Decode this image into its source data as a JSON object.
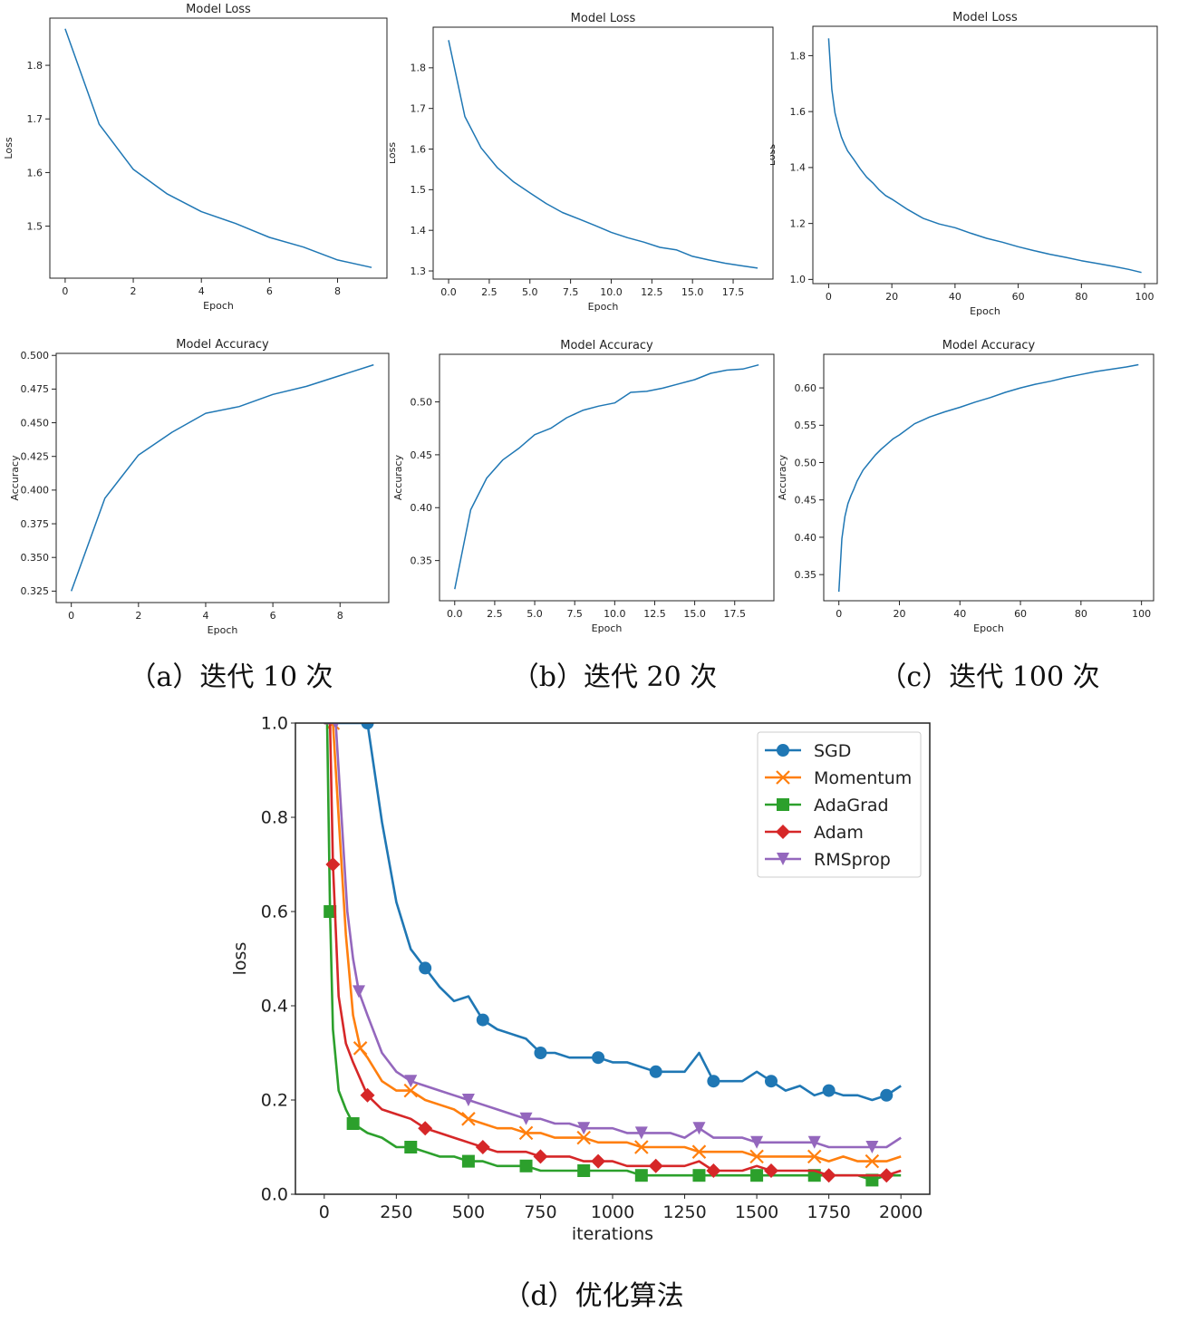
{
  "captions": {
    "a": "（a）迭代 10 次",
    "b": "（b）迭代 20 次",
    "c": "（c）迭代 100 次",
    "d": "（d）优化算法"
  },
  "chart_data": [
    {
      "id": "a_loss",
      "type": "line",
      "title": "Model Loss",
      "xlabel": "Epoch",
      "ylabel": "Loss",
      "xlim": [
        -0.45,
        9.45
      ],
      "ylim": [
        1.403,
        1.888
      ],
      "xticks": [
        0,
        2,
        4,
        6,
        8
      ],
      "yticks": [
        1.5,
        1.6,
        1.7,
        1.8
      ],
      "ytick_fmt": 1,
      "xtick_fmt": 0,
      "series": [
        {
          "color": "#1f77b4",
          "x": [
            0,
            1,
            2,
            3,
            4,
            5,
            6,
            7,
            8,
            9
          ],
          "y": [
            1.868,
            1.69,
            1.606,
            1.56,
            1.527,
            1.505,
            1.479,
            1.461,
            1.437,
            1.423
          ]
        }
      ]
    },
    {
      "id": "b_loss",
      "type": "line",
      "title": "Model Loss",
      "xlabel": "Epoch",
      "ylabel": "Loss",
      "xlim": [
        -0.95,
        19.95
      ],
      "ylim": [
        1.28,
        1.9
      ],
      "xticks": [
        0,
        2.5,
        5,
        7.5,
        10,
        12.5,
        15,
        17.5
      ],
      "yticks": [
        1.3,
        1.4,
        1.5,
        1.6,
        1.7,
        1.8
      ],
      "ytick_fmt": 1,
      "xtick_fmt": 1,
      "series": [
        {
          "color": "#1f77b4",
          "x": [
            0,
            1,
            2,
            3,
            4,
            5,
            6,
            7,
            8,
            9,
            10,
            11,
            12,
            13,
            14,
            15,
            16,
            17,
            18,
            19
          ],
          "y": [
            1.868,
            1.68,
            1.603,
            1.554,
            1.519,
            1.492,
            1.466,
            1.444,
            1.428,
            1.412,
            1.395,
            1.382,
            1.371,
            1.358,
            1.352,
            1.336,
            1.327,
            1.319,
            1.313,
            1.307
          ]
        }
      ]
    },
    {
      "id": "c_loss",
      "type": "line",
      "title": "Model Loss",
      "xlabel": "Epoch",
      "ylabel": "Loss",
      "xlim": [
        -5,
        104
      ],
      "ylim": [
        0.985,
        1.905
      ],
      "xticks": [
        0,
        20,
        40,
        60,
        80,
        100
      ],
      "yticks": [
        1.0,
        1.2,
        1.4,
        1.6,
        1.8
      ],
      "ytick_fmt": 1,
      "xtick_fmt": 0,
      "series": [
        {
          "color": "#1f77b4",
          "x": [
            0,
            1,
            2,
            3,
            4,
            5,
            6,
            8,
            10,
            12,
            14,
            16,
            18,
            20,
            25,
            30,
            35,
            40,
            45,
            50,
            55,
            60,
            65,
            70,
            75,
            80,
            85,
            90,
            95,
            99
          ],
          "y": [
            1.862,
            1.68,
            1.595,
            1.55,
            1.51,
            1.483,
            1.46,
            1.428,
            1.395,
            1.366,
            1.345,
            1.32,
            1.3,
            1.287,
            1.25,
            1.218,
            1.198,
            1.185,
            1.165,
            1.147,
            1.133,
            1.117,
            1.103,
            1.09,
            1.079,
            1.067,
            1.057,
            1.047,
            1.036,
            1.025
          ]
        }
      ]
    },
    {
      "id": "a_acc",
      "type": "line",
      "title": "Model Accuracy",
      "xlabel": "Epoch",
      "ylabel": "Accuracy",
      "xlim": [
        -0.45,
        9.45
      ],
      "ylim": [
        0.3165,
        0.5015
      ],
      "xticks": [
        0,
        2,
        4,
        6,
        8
      ],
      "yticks": [
        0.325,
        0.35,
        0.375,
        0.4,
        0.425,
        0.45,
        0.475,
        0.5
      ],
      "ytick_fmt": 3,
      "xtick_fmt": 0,
      "series": [
        {
          "color": "#1f77b4",
          "x": [
            0,
            1,
            2,
            3,
            4,
            5,
            6,
            7,
            8,
            9
          ],
          "y": [
            0.325,
            0.394,
            0.426,
            0.443,
            0.457,
            0.462,
            0.471,
            0.477,
            0.485,
            0.493
          ]
        }
      ]
    },
    {
      "id": "b_acc",
      "type": "line",
      "title": "Model Accuracy",
      "xlabel": "Epoch",
      "ylabel": "Accuracy",
      "xlim": [
        -0.95,
        19.95
      ],
      "ylim": [
        0.312,
        0.545
      ],
      "xticks": [
        0,
        2.5,
        5,
        7.5,
        10,
        12.5,
        15,
        17.5
      ],
      "yticks": [
        0.35,
        0.4,
        0.45,
        0.5
      ],
      "ytick_fmt": 2,
      "xtick_fmt": 1,
      "series": [
        {
          "color": "#1f77b4",
          "x": [
            0,
            1,
            2,
            3,
            4,
            5,
            6,
            7,
            8,
            9,
            10,
            11,
            12,
            13,
            14,
            15,
            16,
            17,
            18,
            19
          ],
          "y": [
            0.323,
            0.398,
            0.428,
            0.445,
            0.456,
            0.469,
            0.475,
            0.485,
            0.492,
            0.496,
            0.499,
            0.509,
            0.51,
            0.513,
            0.517,
            0.521,
            0.527,
            0.53,
            0.531,
            0.535
          ]
        }
      ]
    },
    {
      "id": "c_acc",
      "type": "line",
      "title": "Model Accuracy",
      "xlabel": "Epoch",
      "ylabel": "Accuracy",
      "xlim": [
        -5,
        104
      ],
      "ylim": [
        0.315,
        0.645
      ],
      "xticks": [
        0,
        20,
        40,
        60,
        80,
        100
      ],
      "yticks": [
        0.35,
        0.4,
        0.45,
        0.5,
        0.55,
        0.6
      ],
      "ytick_fmt": 2,
      "xtick_fmt": 0,
      "series": [
        {
          "color": "#1f77b4",
          "x": [
            0,
            1,
            2,
            3,
            4,
            5,
            6,
            8,
            10,
            12,
            14,
            16,
            18,
            20,
            25,
            30,
            35,
            40,
            45,
            50,
            55,
            60,
            65,
            70,
            75,
            80,
            85,
            90,
            95,
            99
          ],
          "y": [
            0.327,
            0.398,
            0.428,
            0.445,
            0.456,
            0.465,
            0.475,
            0.49,
            0.5,
            0.51,
            0.518,
            0.525,
            0.532,
            0.537,
            0.552,
            0.561,
            0.568,
            0.574,
            0.581,
            0.587,
            0.594,
            0.6,
            0.605,
            0.609,
            0.614,
            0.618,
            0.622,
            0.625,
            0.628,
            0.631
          ]
        }
      ]
    },
    {
      "id": "d_opt",
      "type": "line",
      "title": "",
      "xlabel": "iterations",
      "ylabel": "loss",
      "xlim": [
        -100,
        2100
      ],
      "ylim": [
        0,
        1.0
      ],
      "xticks": [
        0,
        250,
        500,
        750,
        1000,
        1250,
        1500,
        1750,
        2000
      ],
      "yticks": [
        0.0,
        0.2,
        0.4,
        0.6,
        0.8,
        1.0
      ],
      "ytick_fmt": 1,
      "xtick_fmt": 0,
      "legend": "top-right",
      "series": [
        {
          "name": "SGD",
          "color": "#1f77b4",
          "marker": "circle",
          "x": [
            0,
            100,
            150,
            200,
            250,
            300,
            350,
            400,
            450,
            500,
            550,
            600,
            650,
            700,
            750,
            800,
            850,
            900,
            950,
            1000,
            1050,
            1100,
            1150,
            1200,
            1250,
            1300,
            1350,
            1400,
            1450,
            1500,
            1550,
            1600,
            1650,
            1700,
            1750,
            1800,
            1850,
            1900,
            1950,
            2000
          ],
          "y": [
            1.0,
            1.0,
            1.0,
            0.79,
            0.62,
            0.52,
            0.48,
            0.44,
            0.41,
            0.42,
            0.37,
            0.35,
            0.34,
            0.33,
            0.3,
            0.3,
            0.29,
            0.29,
            0.29,
            0.28,
            0.28,
            0.27,
            0.26,
            0.26,
            0.26,
            0.3,
            0.24,
            0.24,
            0.24,
            0.26,
            0.24,
            0.22,
            0.23,
            0.21,
            0.22,
            0.21,
            0.21,
            0.2,
            0.21,
            0.23
          ]
        },
        {
          "name": "Momentum",
          "color": "#ff7f0e",
          "marker": "x",
          "x": [
            0,
            20,
            30,
            50,
            75,
            100,
            125,
            150,
            200,
            250,
            300,
            350,
            400,
            450,
            500,
            550,
            600,
            650,
            700,
            750,
            800,
            850,
            900,
            950,
            1000,
            1050,
            1100,
            1150,
            1200,
            1250,
            1300,
            1350,
            1400,
            1450,
            1500,
            1550,
            1600,
            1650,
            1700,
            1750,
            1800,
            1850,
            1900,
            1950,
            2000
          ],
          "y": [
            1.0,
            1.0,
            1.0,
            0.8,
            0.55,
            0.38,
            0.31,
            0.29,
            0.24,
            0.22,
            0.22,
            0.2,
            0.19,
            0.18,
            0.16,
            0.15,
            0.14,
            0.14,
            0.13,
            0.13,
            0.12,
            0.12,
            0.12,
            0.11,
            0.11,
            0.11,
            0.1,
            0.1,
            0.1,
            0.1,
            0.09,
            0.09,
            0.09,
            0.09,
            0.08,
            0.08,
            0.08,
            0.08,
            0.08,
            0.07,
            0.08,
            0.07,
            0.07,
            0.07,
            0.08
          ]
        },
        {
          "name": "AdaGrad",
          "color": "#2ca02c",
          "marker": "square",
          "x": [
            0,
            10,
            20,
            30,
            50,
            75,
            100,
            150,
            200,
            250,
            300,
            350,
            400,
            450,
            500,
            550,
            600,
            650,
            700,
            750,
            800,
            850,
            900,
            950,
            1000,
            1050,
            1100,
            1150,
            1200,
            1250,
            1300,
            1350,
            1400,
            1450,
            1500,
            1550,
            1600,
            1650,
            1700,
            1750,
            1800,
            1850,
            1900,
            1950,
            2000
          ],
          "y": [
            1.0,
            1.0,
            0.6,
            0.35,
            0.22,
            0.18,
            0.15,
            0.13,
            0.12,
            0.1,
            0.1,
            0.09,
            0.08,
            0.08,
            0.07,
            0.07,
            0.06,
            0.06,
            0.06,
            0.05,
            0.05,
            0.05,
            0.05,
            0.05,
            0.05,
            0.05,
            0.04,
            0.04,
            0.04,
            0.04,
            0.04,
            0.04,
            0.04,
            0.04,
            0.04,
            0.04,
            0.04,
            0.04,
            0.04,
            0.04,
            0.04,
            0.04,
            0.03,
            0.04,
            0.04
          ]
        },
        {
          "name": "Adam",
          "color": "#d62728",
          "marker": "diamond",
          "x": [
            0,
            20,
            30,
            50,
            75,
            100,
            150,
            200,
            250,
            300,
            350,
            400,
            450,
            500,
            550,
            600,
            650,
            700,
            750,
            800,
            850,
            900,
            950,
            1000,
            1050,
            1100,
            1150,
            1200,
            1250,
            1300,
            1350,
            1400,
            1450,
            1500,
            1550,
            1600,
            1650,
            1700,
            1750,
            1800,
            1850,
            1900,
            1950,
            2000
          ],
          "y": [
            1.0,
            1.0,
            0.7,
            0.42,
            0.32,
            0.28,
            0.21,
            0.18,
            0.17,
            0.16,
            0.14,
            0.13,
            0.12,
            0.11,
            0.1,
            0.09,
            0.09,
            0.09,
            0.08,
            0.08,
            0.08,
            0.07,
            0.07,
            0.07,
            0.06,
            0.06,
            0.06,
            0.06,
            0.06,
            0.07,
            0.05,
            0.05,
            0.05,
            0.06,
            0.05,
            0.05,
            0.05,
            0.05,
            0.04,
            0.04,
            0.04,
            0.04,
            0.04,
            0.05
          ]
        },
        {
          "name": "RMSprop",
          "color": "#9467bd",
          "marker": "triangle-down",
          "x": [
            0,
            20,
            40,
            60,
            80,
            100,
            120,
            150,
            200,
            250,
            300,
            350,
            400,
            450,
            500,
            550,
            600,
            650,
            700,
            750,
            800,
            850,
            900,
            950,
            1000,
            1050,
            1100,
            1150,
            1200,
            1250,
            1300,
            1350,
            1400,
            1450,
            1500,
            1550,
            1600,
            1650,
            1700,
            1750,
            1800,
            1850,
            1900,
            1950,
            2000
          ],
          "y": [
            1.0,
            1.0,
            1.0,
            0.8,
            0.6,
            0.5,
            0.43,
            0.38,
            0.3,
            0.26,
            0.24,
            0.23,
            0.22,
            0.21,
            0.2,
            0.19,
            0.18,
            0.17,
            0.16,
            0.16,
            0.15,
            0.15,
            0.14,
            0.14,
            0.14,
            0.13,
            0.13,
            0.13,
            0.13,
            0.12,
            0.14,
            0.12,
            0.12,
            0.12,
            0.11,
            0.11,
            0.11,
            0.11,
            0.11,
            0.1,
            0.1,
            0.1,
            0.1,
            0.1,
            0.12
          ]
        }
      ]
    }
  ]
}
